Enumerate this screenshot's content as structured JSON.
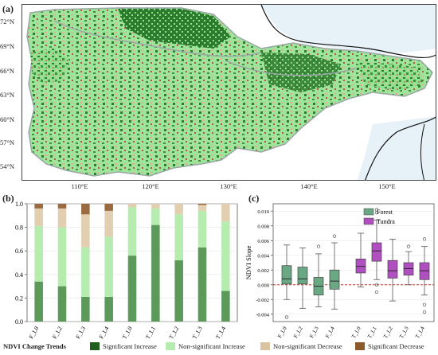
{
  "panels": {
    "a": "(a)",
    "b": "(b)",
    "c": "(c)"
  },
  "map": {
    "lat_labels": [
      "72°N",
      "69°N",
      "66°N",
      "63°N",
      "60°N",
      "57°N",
      "54°N"
    ],
    "lon_labels": [
      "110°E",
      "120°E",
      "130°E",
      "140°E",
      "150°E"
    ],
    "colors": {
      "land": "#eeeeee",
      "ocean": "#e6f1f8",
      "sig_inc": "#1f6b1f",
      "nonsig_inc": "#8fe08f",
      "nonsig_dec": "#d9c3a0",
      "sig_dec": "#b84a2a"
    }
  },
  "legend": {
    "title": "NDVI Change Trends",
    "items": [
      {
        "label": "Significant Increase",
        "color": "#1f5e1f"
      },
      {
        "label": "Non-significant Increase",
        "color": "#b7ecb0"
      },
      {
        "label": "Non-significant Decrease",
        "color": "#d9c3a0"
      },
      {
        "label": "Significant Decrease",
        "color": "#8b5a2b"
      }
    ]
  },
  "chart_data": [
    {
      "type": "bar",
      "stacked": true,
      "panel": "(b)",
      "categories": [
        "F_L0",
        "F_L2",
        "F_L3",
        "F_L4",
        "T_L0",
        "T_L1",
        "T_L2",
        "T_L3",
        "T_L4"
      ],
      "series": [
        {
          "name": "Significant Increase",
          "color": "#5c9a5c",
          "values": [
            0.34,
            0.3,
            0.21,
            0.21,
            0.56,
            0.82,
            0.52,
            0.63,
            0.26
          ]
        },
        {
          "name": "Non-significant Increase",
          "color": "#b7ecb0",
          "values": [
            0.47,
            0.5,
            0.42,
            0.51,
            0.41,
            0.14,
            0.39,
            0.31,
            0.59
          ]
        },
        {
          "name": "Non-significant Decrease",
          "color": "#e2ceb0",
          "values": [
            0.15,
            0.16,
            0.28,
            0.22,
            0.03,
            0.04,
            0.09,
            0.05,
            0.15
          ]
        },
        {
          "name": "Significant Decrease",
          "color": "#9a6a40",
          "values": [
            0.04,
            0.04,
            0.09,
            0.06,
            0.0,
            0.0,
            0.0,
            0.01,
            0.0
          ]
        }
      ],
      "ylim": [
        0,
        1.0
      ],
      "yticks": [
        "0.0",
        "0.2",
        "0.4",
        "0.6",
        "0.8",
        "1.0"
      ]
    },
    {
      "type": "box",
      "panel": "(c)",
      "ylabel": "NDVI Slope",
      "ylim": [
        -0.005,
        0.011
      ],
      "yticks": [
        "-0.004",
        "-0.002",
        "0.000",
        "0.002",
        "0.004",
        "0.006",
        "0.008",
        "0.010"
      ],
      "reference_line": 0,
      "legend": [
        {
          "name": "Forest",
          "color": "#6aa884"
        },
        {
          "name": "Tundra",
          "color": "#b04fbf"
        }
      ],
      "boxes": [
        {
          "label": "F_L0",
          "group": "Forest",
          "whislo": -0.002,
          "q1": 0.0001,
          "med": 0.0008,
          "q3": 0.0026,
          "whishi": 0.0054,
          "fliers": [
            -0.0044
          ]
        },
        {
          "label": "F_L2",
          "group": "Forest",
          "whislo": -0.0032,
          "q1": 0.0001,
          "med": 0.0008,
          "q3": 0.0024,
          "whishi": 0.005,
          "fliers": []
        },
        {
          "label": "F_L3",
          "group": "Forest",
          "whislo": -0.003,
          "q1": -0.0014,
          "med": -0.0002,
          "q3": 0.001,
          "whishi": 0.0042,
          "fliers": [
            0.0052
          ]
        },
        {
          "label": "F_L4",
          "group": "Forest",
          "whislo": -0.0033,
          "q1": -0.0006,
          "med": 0.0005,
          "q3": 0.002,
          "whishi": 0.0057,
          "fliers": [
            0.0066
          ]
        },
        {
          "label": "T_L0",
          "group": "Tundra",
          "whislo": -0.0003,
          "q1": 0.0016,
          "med": 0.0025,
          "q3": 0.0035,
          "whishi": 0.007,
          "fliers": []
        },
        {
          "label": "T_L1",
          "group": "Tundra",
          "whislo": 0.0007,
          "q1": 0.0032,
          "med": 0.0046,
          "q3": 0.0057,
          "whishi": 0.0088,
          "fliers": [
            0.0098,
            0.0102,
            -0.001,
            0.0
          ]
        },
        {
          "label": "T_L2",
          "group": "Tundra",
          "whislo": -0.0022,
          "q1": 0.0009,
          "med": 0.0019,
          "q3": 0.0033,
          "whishi": 0.0062,
          "fliers": []
        },
        {
          "label": "T_L3",
          "group": "Tundra",
          "whislo": 0.0,
          "q1": 0.0013,
          "med": 0.0022,
          "q3": 0.003,
          "whishi": 0.0045,
          "fliers": [
            0.0052
          ]
        },
        {
          "label": "T_L4",
          "group": "Tundra",
          "whislo": -0.0014,
          "q1": 0.0007,
          "med": 0.0019,
          "q3": 0.003,
          "whishi": 0.0052,
          "fliers": [
            0.0062,
            -0.0027,
            -0.0037
          ]
        }
      ]
    }
  ]
}
